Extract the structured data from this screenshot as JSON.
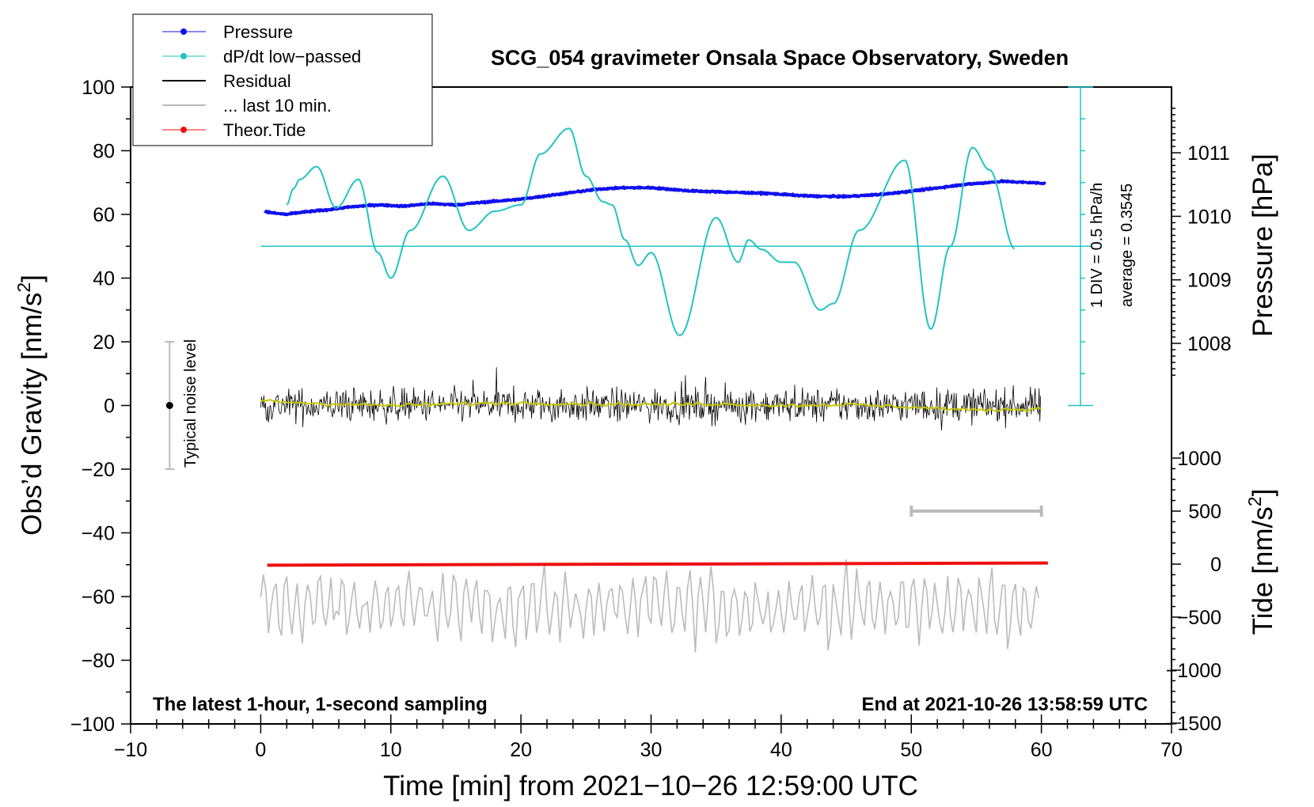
{
  "chart_data": {
    "type": "line",
    "title": "SCG_054 gravimeter Onsala Space Observatory, Sweden",
    "subtitle_left": "The latest 1-hour, 1-second sampling",
    "subtitle_right": "End at 2021-10-26 13:58:59 UTC",
    "xlabel": "Time [min] from 2021−10−26 12:59:00 UTC",
    "ylabel": "Obs’d Gravity [nm/s",
    "ylabel_sup": "2",
    "ylabel_end": "]",
    "y2label_pressure": "Pressure [hPa]",
    "y2label_tide": "Tide [nm/s",
    "y2label_tide_sup": "2",
    "y2label_tide_end": "]",
    "xlim": [
      -10,
      70
    ],
    "ylim": [
      -100,
      100
    ],
    "x_ticks": [
      "−10",
      "0",
      "10",
      "20",
      "30",
      "40",
      "50",
      "60",
      "70"
    ],
    "y_ticks": [
      "−100",
      "−80",
      "−60",
      "−40",
      "−20",
      "0",
      "20",
      "40",
      "60",
      "80",
      "100"
    ],
    "pressure_ticks": [
      "1008",
      "1009",
      "1010",
      "1011"
    ],
    "tide_ticks": [
      "−1500",
      "−1000",
      "−500",
      "0",
      "500",
      "1000"
    ],
    "pressure_axis": {
      "range_hPa": [
        1005.0,
        1012.0
      ],
      "ticks_values": [
        1008,
        1009,
        1010,
        1011
      ]
    },
    "tide_axis": {
      "range_nms2": [
        -1500,
        1000
      ],
      "ticks_values": [
        -1500,
        -1000,
        -500,
        0,
        500,
        1000
      ]
    },
    "dpdt_scale_label": "1 DIV = 0.5 hPa/h",
    "dpdt_average_label": "average = 0.3545",
    "noise_label": "Typical noise level",
    "noise_bar": {
      "x": -7,
      "center": 0,
      "half_range": 20
    },
    "last10_bar": {
      "x_start": 50,
      "x_end": 60,
      "y_tide": 500
    },
    "legend": [
      {
        "label": "Pressure",
        "color": "#1010ee",
        "style": "line-dot"
      },
      {
        "label": "dP/dt low−passed",
        "color": "#22c3c3",
        "style": "line-dot"
      },
      {
        "label": "Residual",
        "color": "#000000",
        "style": "line"
      },
      {
        "label": "... last 10 min.",
        "color": "#bbbbbb",
        "style": "line"
      },
      {
        "label": "Theor.Tide",
        "color": "#ee1111",
        "style": "line-dot"
      }
    ],
    "series": [
      {
        "name": "Pressure",
        "color": "#1010ee",
        "units": "hPa",
        "x": [
          0.3,
          1,
          2,
          3,
          5,
          7,
          9,
          11,
          13,
          15,
          17,
          20,
          23,
          26,
          28,
          30,
          33,
          36,
          39,
          42,
          45,
          48,
          51,
          54,
          57,
          60.3
        ],
        "values": [
          1010.08,
          1010.05,
          1010.03,
          1010.06,
          1010.1,
          1010.15,
          1010.18,
          1010.16,
          1010.2,
          1010.18,
          1010.22,
          1010.27,
          1010.35,
          1010.43,
          1010.45,
          1010.45,
          1010.4,
          1010.38,
          1010.36,
          1010.32,
          1010.31,
          1010.35,
          1010.42,
          1010.5,
          1010.55,
          1010.52
        ]
      },
      {
        "name": "dP/dt low-passed",
        "color": "#22c3c3",
        "units": "nm/s2-equivalent plot level",
        "x": [
          2,
          2.5,
          3,
          4.3,
          5.8,
          7.5,
          9,
          10,
          11.5,
          14,
          16,
          18,
          20,
          21.5,
          23.7,
          25,
          26.3,
          27,
          28,
          29,
          30,
          32.2,
          35,
          36.7,
          37.5,
          38.5,
          40,
          41,
          43,
          44,
          46,
          49.5,
          51.5,
          53,
          54.7,
          56,
          58
        ],
        "values": [
          63,
          68,
          71,
          75,
          62,
          71,
          48,
          40,
          55,
          72,
          55,
          61,
          63,
          79,
          87,
          72,
          64,
          63,
          52,
          44,
          48,
          22,
          59,
          45,
          52,
          49,
          45,
          45,
          30,
          32,
          55,
          77,
          24,
          50,
          81,
          74,
          49
        ]
      },
      {
        "name": "Residual",
        "color": "#000000",
        "units": "nm/s2",
        "x_range": [
          0,
          60
        ],
        "envelope": [
          -15,
          15
        ],
        "smoothed_color": "#c8c800",
        "smoothed_x": [
          0,
          5,
          10,
          15,
          20,
          25,
          30,
          35,
          40,
          45,
          50,
          55,
          60
        ],
        "smoothed_values": [
          1.5,
          0.5,
          0,
          0.5,
          0.8,
          0.5,
          0.3,
          0.5,
          0,
          0.3,
          -0.5,
          -1.5,
          -1
        ]
      },
      {
        "name": "... last 10 min.",
        "color": "#bbbbbb",
        "units": "nm/s2",
        "x_range": [
          0,
          60
        ],
        "baseline": -63,
        "envelope": [
          -78,
          -43
        ]
      },
      {
        "name": "Theor.Tide",
        "color": "#ee1111",
        "units": "nm/s2",
        "x": [
          0.5,
          60.5
        ],
        "values_tide": [
          -10,
          10
        ]
      }
    ]
  }
}
